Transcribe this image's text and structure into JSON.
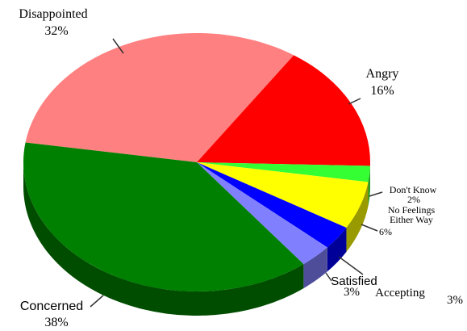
{
  "chart_data": {
    "type": "pie",
    "title": "",
    "slices": [
      {
        "label": "Disappointed",
        "value": 32,
        "value_label": "32%",
        "color": "#ff8080",
        "dark": "#b35a5a"
      },
      {
        "label": "Angry",
        "value": 16,
        "value_label": "16%",
        "color": "#ff0000",
        "dark": "#990000"
      },
      {
        "label": "Don't Know",
        "value": 2,
        "value_label": "2%",
        "color": "#33ff33",
        "dark": "#1f991f"
      },
      {
        "label": "No Feelings Either Way",
        "value": 6,
        "value_label": "6%",
        "color": "#ffff00",
        "dark": "#999900"
      },
      {
        "label": "Accepting",
        "value": 3,
        "value_label": "3%",
        "color": "#0000ff",
        "dark": "#000099"
      },
      {
        "label": "Satisfied",
        "value": 3,
        "value_label": "3%",
        "color": "#8080ff",
        "dark": "#4d4d99"
      },
      {
        "label": "Concerned",
        "value": 38,
        "value_label": "38%",
        "color": "#008000",
        "dark": "#004d00"
      }
    ],
    "style": "3d-tilted",
    "legend": "none"
  }
}
